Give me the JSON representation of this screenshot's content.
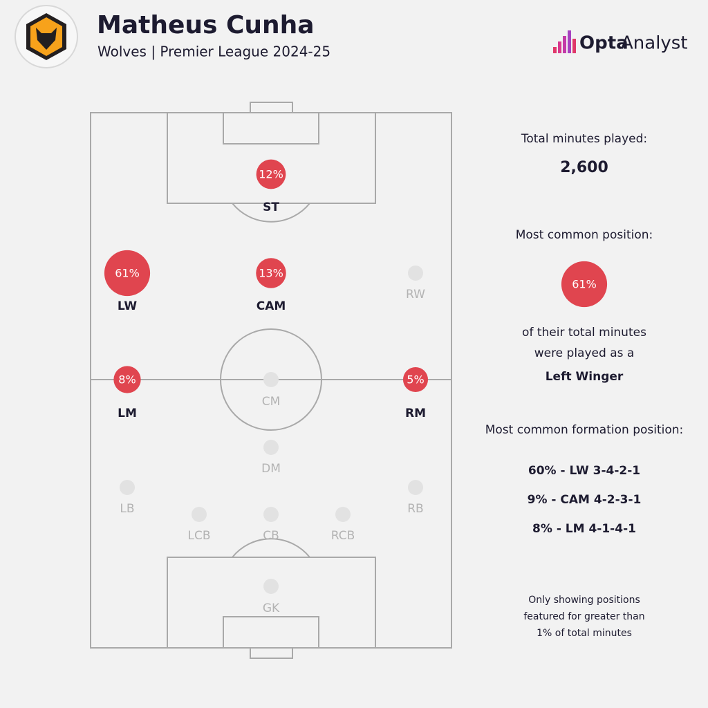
{
  "header": {
    "title": "Matheus Cunha",
    "subtitle": "Wolves | Premier League 2024-25",
    "brand": {
      "bold": "Opta",
      "light": "Analyst"
    }
  },
  "positions": [
    {
      "name": "ST",
      "value": 12,
      "value_label": "12%"
    },
    {
      "name": "LW",
      "value": 61,
      "value_label": "61%"
    },
    {
      "name": "CAM",
      "value": 13,
      "value_label": "13%"
    },
    {
      "name": "RW"
    },
    {
      "name": "LM",
      "value": 8,
      "value_label": "8%"
    },
    {
      "name": "CM"
    },
    {
      "name": "RM",
      "value": 5,
      "value_label": "5%"
    },
    {
      "name": "DM"
    },
    {
      "name": "LB"
    },
    {
      "name": "RB"
    },
    {
      "name": "LCB"
    },
    {
      "name": "CB"
    },
    {
      "name": "RCB"
    },
    {
      "name": "GK"
    }
  ],
  "panel": {
    "minutes_label": "Total minutes played:",
    "minutes": "2,600",
    "common_label": "Most common position:",
    "common_value": 61,
    "common_value_label": "61%",
    "common_text_1": "of their total minutes",
    "common_text_2": "were played as a",
    "common_position": "Left Winger",
    "formation_label": "Most common formation position:",
    "formations": [
      "60% - LW 3-4-2-1",
      "9% - CAM 4-2-3-1",
      "8% - LM 4-1-4-1"
    ],
    "note": [
      "Only showing positions",
      "featured for greater than",
      "1% of total minutes"
    ]
  }
}
